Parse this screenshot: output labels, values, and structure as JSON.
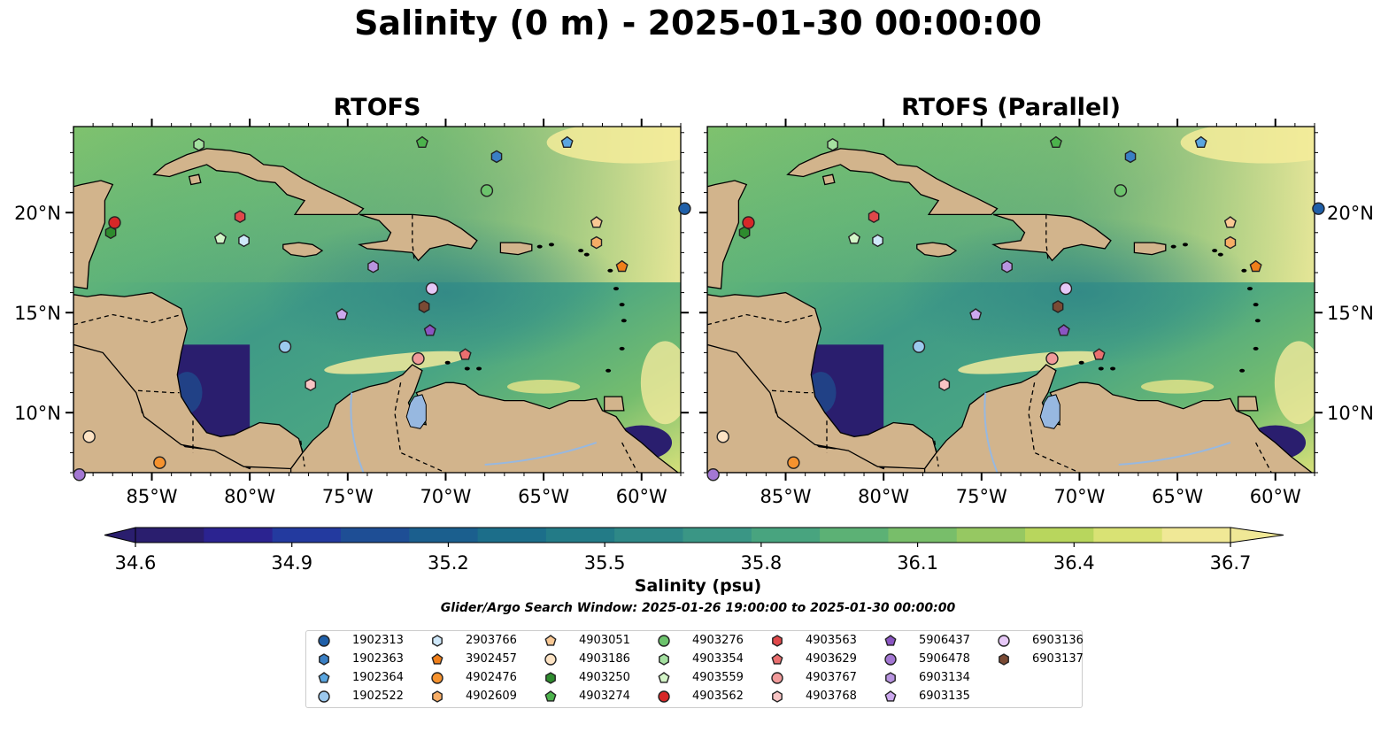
{
  "title": "Salinity (0 m) - 2025-01-30 00:00:00",
  "panels": [
    {
      "title": "RTOFS"
    },
    {
      "title": "RTOFS (Parallel)"
    }
  ],
  "axes": {
    "lon_labels": [
      "85°W",
      "80°W",
      "75°W",
      "70°W",
      "65°W",
      "60°W"
    ],
    "lon_values": [
      -85,
      -80,
      -75,
      -70,
      -65,
      -60
    ],
    "lat_labels": [
      "20°N",
      "15°N",
      "10°N"
    ],
    "lat_values": [
      20,
      15,
      10
    ],
    "lon_range": [
      -89,
      -58
    ],
    "lat_range": [
      7,
      24.3
    ]
  },
  "colorbar": {
    "ticks": [
      "34.6",
      "34.9",
      "35.2",
      "35.5",
      "35.8",
      "36.1",
      "36.4",
      "36.7"
    ],
    "range": [
      34.6,
      36.7
    ],
    "label": "Salinity (psu)",
    "colors": [
      "#2a1e6e",
      "#2b2390",
      "#233a9f",
      "#1e4e95",
      "#1b5f8e",
      "#1c6e8a",
      "#237b87",
      "#2e8887",
      "#3a9685",
      "#48a47f",
      "#5cb175",
      "#78be6a",
      "#96c862",
      "#b8d65d",
      "#d9e274",
      "#f0e896"
    ]
  },
  "search_window": "Glider/Argo Search Window: 2025-01-26 19:00:00 to 2025-01-30 00:00:00",
  "map_colors": {
    "land": "#d2b48c",
    "lake": "#97b8e0",
    "coast": "#000000",
    "low_sal": "#2a1e6e",
    "high_sal": "#f5ec9a"
  },
  "floats": [
    {
      "id": "1902313",
      "marker": "circle",
      "color": "#1f5fa8",
      "lon": -57.8,
      "lat": 20.2
    },
    {
      "id": "1902363",
      "marker": "hexagon",
      "color": "#3a7fc4",
      "lon": -67.4,
      "lat": 22.8
    },
    {
      "id": "1902364",
      "marker": "pentagon",
      "color": "#5aa6e0",
      "lon": -63.8,
      "lat": 23.5
    },
    {
      "id": "1902522",
      "marker": "circle",
      "color": "#9cc9ee",
      "lon": -78.2,
      "lat": 13.3
    },
    {
      "id": "2903766",
      "marker": "hexagon",
      "color": "#cfe8fa",
      "lon": -80.3,
      "lat": 18.6
    },
    {
      "id": "3902457",
      "marker": "pentagon",
      "color": "#f07f1a",
      "lon": -61.0,
      "lat": 17.3
    },
    {
      "id": "4902476",
      "marker": "circle",
      "color": "#f5922e",
      "lon": -84.6,
      "lat": 7.5
    },
    {
      "id": "4902609",
      "marker": "hexagon",
      "color": "#f7ad66",
      "lon": -62.3,
      "lat": 18.5
    },
    {
      "id": "4903051",
      "marker": "pentagon",
      "color": "#f9c894",
      "lon": -62.3,
      "lat": 19.5
    },
    {
      "id": "4903186",
      "marker": "circle",
      "color": "#fde3c4",
      "lon": -88.2,
      "lat": 8.8
    },
    {
      "id": "4903250",
      "marker": "hexagon",
      "color": "#2e8b2e",
      "lon": -87.1,
      "lat": 19.0
    },
    {
      "id": "4903274",
      "marker": "pentagon",
      "color": "#4cb34c",
      "lon": -71.2,
      "lat": 23.5
    },
    {
      "id": "4903276",
      "marker": "circle",
      "color": "#6cc36c",
      "lon": -67.9,
      "lat": 21.1
    },
    {
      "id": "4903354",
      "marker": "hexagon",
      "color": "#a4e0a0",
      "lon": -82.6,
      "lat": 23.4
    },
    {
      "id": "4903559",
      "marker": "pentagon",
      "color": "#d4f5c8",
      "lon": -81.5,
      "lat": 18.7
    },
    {
      "id": "4903562",
      "marker": "circle",
      "color": "#d62728",
      "lon": -86.9,
      "lat": 19.5
    },
    {
      "id": "4903563",
      "marker": "hexagon",
      "color": "#e0484a",
      "lon": -80.5,
      "lat": 19.8
    },
    {
      "id": "4903629",
      "marker": "pentagon",
      "color": "#ea6f6f",
      "lon": -69.0,
      "lat": 12.9
    },
    {
      "id": "4903767",
      "marker": "circle",
      "color": "#f19a9a",
      "lon": -71.4,
      "lat": 12.7
    },
    {
      "id": "4903768",
      "marker": "hexagon",
      "color": "#f8c4c4",
      "lon": -76.9,
      "lat": 11.4
    },
    {
      "id": "5906437",
      "marker": "pentagon",
      "color": "#8a55c2",
      "lon": -70.8,
      "lat": 14.1
    },
    {
      "id": "5906478",
      "marker": "circle",
      "color": "#a377d3",
      "lon": -88.7,
      "lat": 6.9
    },
    {
      "id": "6903134",
      "marker": "hexagon",
      "color": "#b894e0",
      "lon": -73.7,
      "lat": 17.3
    },
    {
      "id": "6903135",
      "marker": "pentagon",
      "color": "#cca8ee",
      "lon": -75.3,
      "lat": 14.9
    },
    {
      "id": "6903136",
      "marker": "circle",
      "color": "#e6c8f7",
      "lon": -70.7,
      "lat": 16.2
    },
    {
      "id": "6903137",
      "marker": "hexagon",
      "color": "#7a4a34",
      "lon": -71.1,
      "lat": 15.3
    }
  ]
}
